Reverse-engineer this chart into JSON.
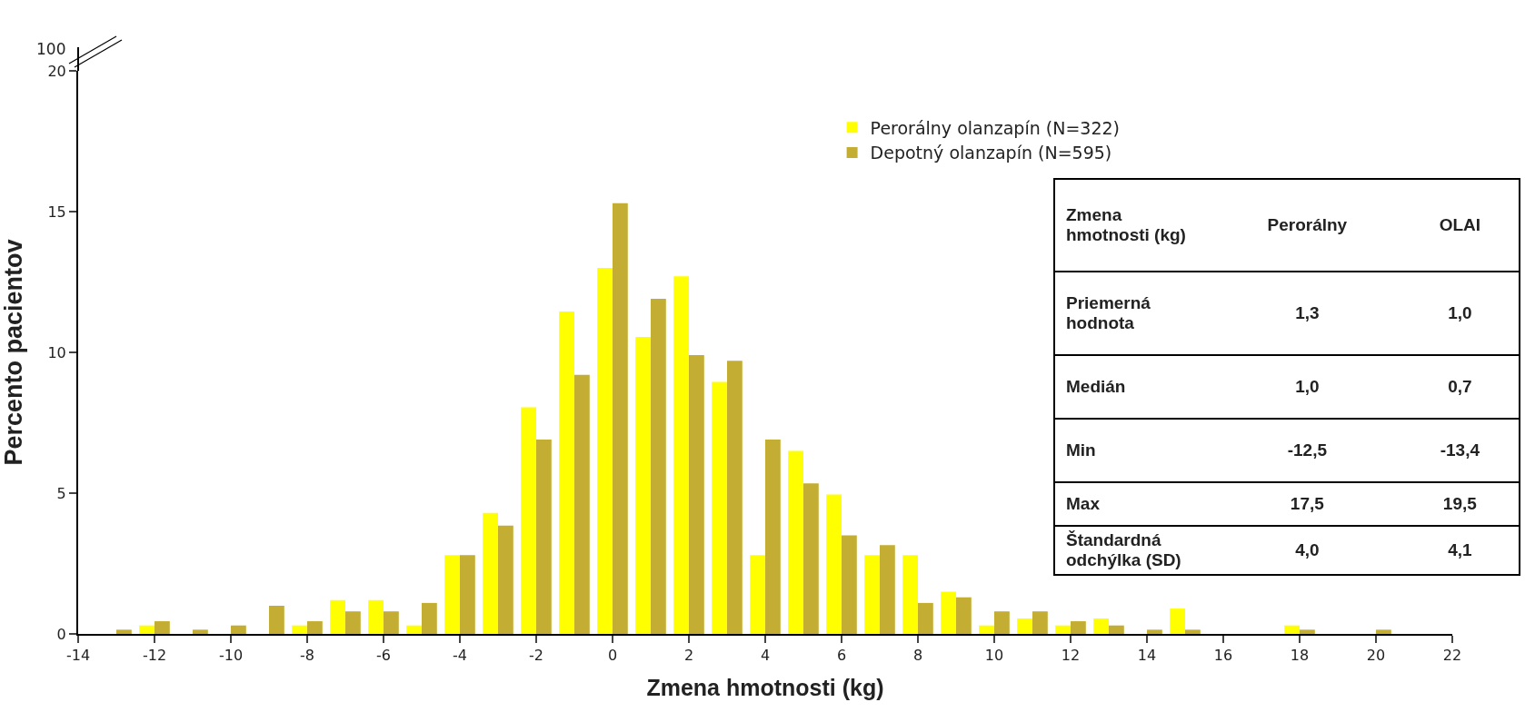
{
  "chart_data": {
    "type": "bar",
    "xlabel": "Zmena hmotnosti (kg)",
    "ylabel": "Percento pacientov",
    "x": [
      -13,
      -12,
      -11,
      -10,
      -9,
      -8,
      -7,
      -6,
      -5,
      -4,
      -3,
      -2,
      -1,
      0,
      1,
      2,
      3,
      4,
      5,
      6,
      7,
      8,
      9,
      10,
      11,
      12,
      13,
      14,
      15,
      16,
      17,
      18,
      19,
      20
    ],
    "series": [
      {
        "name": "Perorálny olanzapín (N=322)",
        "color": "#ffff00",
        "values": [
          0,
          0.3,
          0,
          0,
          0,
          0.3,
          1.2,
          1.2,
          0.3,
          2.8,
          4.3,
          8.05,
          11.45,
          13.0,
          10.55,
          12.7,
          8.95,
          2.8,
          6.5,
          4.95,
          2.8,
          2.8,
          1.5,
          0.3,
          0.55,
          0.3,
          0.55,
          0,
          0.9,
          0,
          0,
          0.3,
          0,
          0
        ]
      },
      {
        "name": "Depotný olanzapín (N=595)",
        "color": "#c4ad33",
        "values": [
          0.15,
          0.45,
          0.15,
          0.3,
          1.0,
          0.45,
          0.8,
          0.8,
          1.1,
          2.8,
          3.85,
          6.9,
          9.2,
          15.3,
          11.9,
          9.9,
          9.7,
          6.9,
          5.35,
          3.5,
          3.15,
          1.1,
          1.3,
          0.8,
          0.8,
          0.45,
          0.3,
          0.15,
          0.15,
          0,
          0,
          0.15,
          0,
          0.15
        ]
      }
    ],
    "xlim": [
      -14,
      22
    ],
    "xticks": [
      -14,
      -12,
      -10,
      -8,
      -6,
      -4,
      -2,
      0,
      2,
      4,
      6,
      8,
      10,
      12,
      14,
      16,
      18,
      20,
      22
    ],
    "ylim": [
      0,
      20
    ],
    "yticks": [
      0,
      5,
      10,
      15,
      20
    ],
    "grid": false,
    "legend": "top right",
    "annotations": [
      "100",
      "Zmena hmotnosti (kg)",
      "Perorálny",
      "OLAI",
      "Priemerná hodnota",
      "1,3",
      "1,0",
      "Medián",
      "1,0",
      "0,7",
      "Min",
      "-12,5",
      "-13,4",
      "Max",
      "17,5",
      "19,5",
      "Štandardná odchýlka (SD)",
      "4,0",
      "4,1"
    ]
  }
}
